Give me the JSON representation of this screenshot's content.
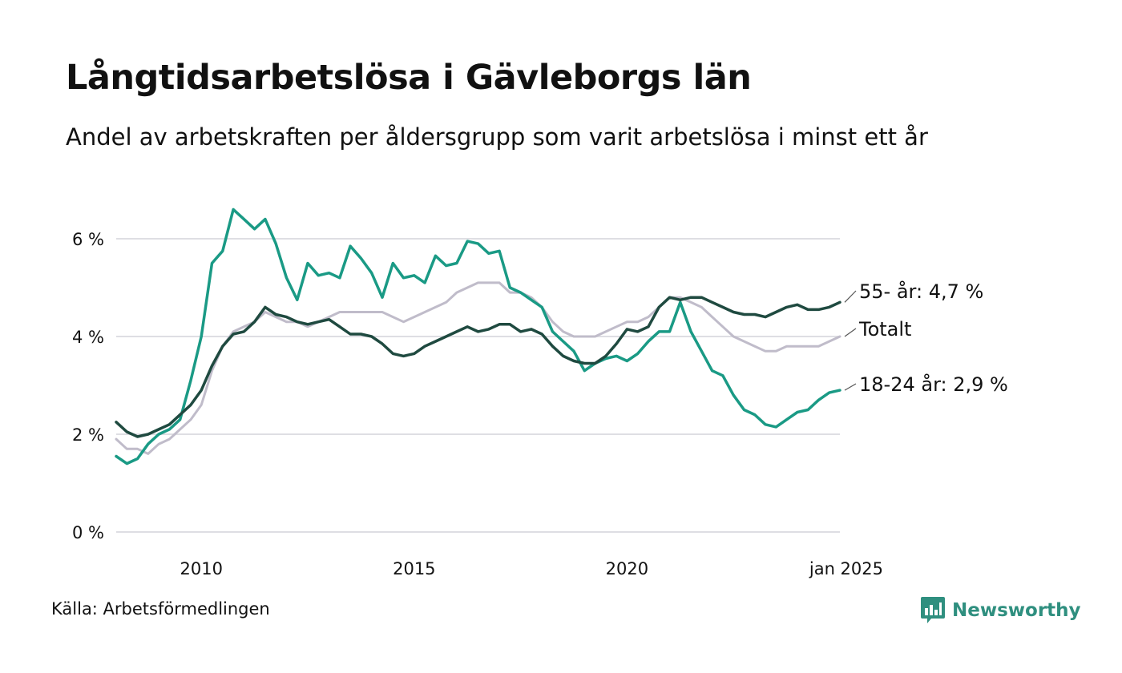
{
  "header": {
    "title": "Långtidsarbetslösa i Gävleborgs län",
    "subtitle": "Andel av arbetskraften per åldersgrupp som varit arbetslösa i minst ett år"
  },
  "footer": {
    "source": "Källa: Arbetsförmedlingen",
    "brand": "Newsworthy"
  },
  "colors": {
    "youth": "#1a9a85",
    "senior": "#1f4a40",
    "total": "#c0bcca",
    "grid": "#dedee3",
    "brand": "#2f8f7f"
  },
  "chart_data": {
    "type": "line",
    "title": "Långtidsarbetslösa i Gävleborgs län",
    "subtitle": "Andel av arbetskraften per åldersgrupp som varit arbetslösa i minst ett år",
    "xlabel": "",
    "ylabel": "",
    "xlim": [
      "2008-01",
      "2025-01"
    ],
    "ylim": [
      0,
      7
    ],
    "y_ticks": [
      0,
      2,
      4,
      6
    ],
    "y_tick_labels": [
      "0 %",
      "2 %",
      "4 %",
      "6 %"
    ],
    "x_ticks": [
      "2010-01",
      "2015-01",
      "2020-01",
      "2025-01"
    ],
    "x_tick_labels": [
      "2010",
      "2015",
      "2020",
      "jan 2025"
    ],
    "grid": true,
    "legend": "end-of-line labels",
    "series": [
      {
        "key": "total",
        "name": "Totalt",
        "end_label": "Totalt",
        "points": [
          [
            "2008-01",
            1.9
          ],
          [
            "2008-04",
            1.7
          ],
          [
            "2008-07",
            1.7
          ],
          [
            "2008-10",
            1.6
          ],
          [
            "2009-01",
            1.8
          ],
          [
            "2009-04",
            1.9
          ],
          [
            "2009-07",
            2.1
          ],
          [
            "2009-10",
            2.3
          ],
          [
            "2010-01",
            2.6
          ],
          [
            "2010-04",
            3.3
          ],
          [
            "2010-07",
            3.8
          ],
          [
            "2010-10",
            4.1
          ],
          [
            "2011-01",
            4.2
          ],
          [
            "2011-04",
            4.3
          ],
          [
            "2011-07",
            4.5
          ],
          [
            "2011-10",
            4.4
          ],
          [
            "2012-01",
            4.3
          ],
          [
            "2012-04",
            4.3
          ],
          [
            "2012-07",
            4.2
          ],
          [
            "2012-10",
            4.3
          ],
          [
            "2013-01",
            4.4
          ],
          [
            "2013-04",
            4.5
          ],
          [
            "2013-07",
            4.5
          ],
          [
            "2013-10",
            4.5
          ],
          [
            "2014-01",
            4.5
          ],
          [
            "2014-04",
            4.5
          ],
          [
            "2014-07",
            4.4
          ],
          [
            "2014-10",
            4.3
          ],
          [
            "2015-01",
            4.4
          ],
          [
            "2015-04",
            4.5
          ],
          [
            "2015-07",
            4.6
          ],
          [
            "2015-10",
            4.7
          ],
          [
            "2016-01",
            4.9
          ],
          [
            "2016-04",
            5.0
          ],
          [
            "2016-07",
            5.1
          ],
          [
            "2016-10",
            5.1
          ],
          [
            "2017-01",
            5.1
          ],
          [
            "2017-04",
            4.9
          ],
          [
            "2017-07",
            4.9
          ],
          [
            "2017-10",
            4.8
          ],
          [
            "2018-01",
            4.6
          ],
          [
            "2018-04",
            4.3
          ],
          [
            "2018-07",
            4.1
          ],
          [
            "2018-10",
            4.0
          ],
          [
            "2019-01",
            4.0
          ],
          [
            "2019-04",
            4.0
          ],
          [
            "2019-07",
            4.1
          ],
          [
            "2019-10",
            4.2
          ],
          [
            "2020-01",
            4.3
          ],
          [
            "2020-04",
            4.3
          ],
          [
            "2020-07",
            4.4
          ],
          [
            "2020-10",
            4.6
          ],
          [
            "2021-01",
            4.8
          ],
          [
            "2021-04",
            4.8
          ],
          [
            "2021-07",
            4.7
          ],
          [
            "2021-10",
            4.6
          ],
          [
            "2022-01",
            4.4
          ],
          [
            "2022-04",
            4.2
          ],
          [
            "2022-07",
            4.0
          ],
          [
            "2022-10",
            3.9
          ],
          [
            "2023-01",
            3.8
          ],
          [
            "2023-04",
            3.7
          ],
          [
            "2023-07",
            3.7
          ],
          [
            "2023-10",
            3.8
          ],
          [
            "2024-01",
            3.8
          ],
          [
            "2024-04",
            3.8
          ],
          [
            "2024-07",
            3.8
          ],
          [
            "2024-10",
            3.9
          ],
          [
            "2025-01",
            4.0
          ]
        ]
      },
      {
        "key": "youth",
        "name": "18-24 år",
        "end_label": "18-24 år: 2,9 %",
        "points": [
          [
            "2008-01",
            1.55
          ],
          [
            "2008-04",
            1.4
          ],
          [
            "2008-07",
            1.5
          ],
          [
            "2008-10",
            1.8
          ],
          [
            "2009-01",
            2.0
          ],
          [
            "2009-04",
            2.1
          ],
          [
            "2009-07",
            2.3
          ],
          [
            "2009-10",
            3.1
          ],
          [
            "2010-01",
            4.0
          ],
          [
            "2010-04",
            5.5
          ],
          [
            "2010-07",
            5.75
          ],
          [
            "2010-10",
            6.6
          ],
          [
            "2011-01",
            6.4
          ],
          [
            "2011-04",
            6.2
          ],
          [
            "2011-07",
            6.4
          ],
          [
            "2011-10",
            5.9
          ],
          [
            "2012-01",
            5.2
          ],
          [
            "2012-04",
            4.75
          ],
          [
            "2012-07",
            5.5
          ],
          [
            "2012-10",
            5.25
          ],
          [
            "2013-01",
            5.3
          ],
          [
            "2013-04",
            5.2
          ],
          [
            "2013-07",
            5.85
          ],
          [
            "2013-10",
            5.6
          ],
          [
            "2014-01",
            5.3
          ],
          [
            "2014-04",
            4.8
          ],
          [
            "2014-07",
            5.5
          ],
          [
            "2014-10",
            5.2
          ],
          [
            "2015-01",
            5.25
          ],
          [
            "2015-04",
            5.1
          ],
          [
            "2015-07",
            5.65
          ],
          [
            "2015-10",
            5.45
          ],
          [
            "2016-01",
            5.5
          ],
          [
            "2016-04",
            5.95
          ],
          [
            "2016-07",
            5.9
          ],
          [
            "2016-10",
            5.7
          ],
          [
            "2017-01",
            5.75
          ],
          [
            "2017-04",
            5.0
          ],
          [
            "2017-07",
            4.9
          ],
          [
            "2017-10",
            4.75
          ],
          [
            "2018-01",
            4.6
          ],
          [
            "2018-04",
            4.1
          ],
          [
            "2018-07",
            3.9
          ],
          [
            "2018-10",
            3.7
          ],
          [
            "2019-01",
            3.3
          ],
          [
            "2019-04",
            3.45
          ],
          [
            "2019-07",
            3.55
          ],
          [
            "2019-10",
            3.6
          ],
          [
            "2020-01",
            3.5
          ],
          [
            "2020-04",
            3.65
          ],
          [
            "2020-07",
            3.9
          ],
          [
            "2020-10",
            4.1
          ],
          [
            "2021-01",
            4.1
          ],
          [
            "2021-04",
            4.7
          ],
          [
            "2021-07",
            4.1
          ],
          [
            "2021-10",
            3.7
          ],
          [
            "2022-01",
            3.3
          ],
          [
            "2022-04",
            3.2
          ],
          [
            "2022-07",
            2.8
          ],
          [
            "2022-10",
            2.5
          ],
          [
            "2023-01",
            2.4
          ],
          [
            "2023-04",
            2.2
          ],
          [
            "2023-07",
            2.15
          ],
          [
            "2023-10",
            2.3
          ],
          [
            "2024-01",
            2.45
          ],
          [
            "2024-04",
            2.5
          ],
          [
            "2024-07",
            2.7
          ],
          [
            "2024-10",
            2.85
          ],
          [
            "2025-01",
            2.9
          ]
        ]
      },
      {
        "key": "senior",
        "name": "55- år",
        "end_label": "55- år: 4,7 %",
        "points": [
          [
            "2008-01",
            2.25
          ],
          [
            "2008-04",
            2.05
          ],
          [
            "2008-07",
            1.95
          ],
          [
            "2008-10",
            2.0
          ],
          [
            "2009-01",
            2.1
          ],
          [
            "2009-04",
            2.2
          ],
          [
            "2009-07",
            2.4
          ],
          [
            "2009-10",
            2.6
          ],
          [
            "2010-01",
            2.9
          ],
          [
            "2010-04",
            3.4
          ],
          [
            "2010-07",
            3.8
          ],
          [
            "2010-10",
            4.05
          ],
          [
            "2011-01",
            4.1
          ],
          [
            "2011-04",
            4.3
          ],
          [
            "2011-07",
            4.6
          ],
          [
            "2011-10",
            4.45
          ],
          [
            "2012-01",
            4.4
          ],
          [
            "2012-04",
            4.3
          ],
          [
            "2012-07",
            4.25
          ],
          [
            "2012-10",
            4.3
          ],
          [
            "2013-01",
            4.35
          ],
          [
            "2013-04",
            4.2
          ],
          [
            "2013-07",
            4.05
          ],
          [
            "2013-10",
            4.05
          ],
          [
            "2014-01",
            4.0
          ],
          [
            "2014-04",
            3.85
          ],
          [
            "2014-07",
            3.65
          ],
          [
            "2014-10",
            3.6
          ],
          [
            "2015-01",
            3.65
          ],
          [
            "2015-04",
            3.8
          ],
          [
            "2015-07",
            3.9
          ],
          [
            "2015-10",
            4.0
          ],
          [
            "2016-01",
            4.1
          ],
          [
            "2016-04",
            4.2
          ],
          [
            "2016-07",
            4.1
          ],
          [
            "2016-10",
            4.15
          ],
          [
            "2017-01",
            4.25
          ],
          [
            "2017-04",
            4.25
          ],
          [
            "2017-07",
            4.1
          ],
          [
            "2017-10",
            4.15
          ],
          [
            "2018-01",
            4.05
          ],
          [
            "2018-04",
            3.8
          ],
          [
            "2018-07",
            3.6
          ],
          [
            "2018-10",
            3.5
          ],
          [
            "2019-01",
            3.45
          ],
          [
            "2019-04",
            3.45
          ],
          [
            "2019-07",
            3.6
          ],
          [
            "2019-10",
            3.85
          ],
          [
            "2020-01",
            4.15
          ],
          [
            "2020-04",
            4.1
          ],
          [
            "2020-07",
            4.2
          ],
          [
            "2020-10",
            4.6
          ],
          [
            "2021-01",
            4.8
          ],
          [
            "2021-04",
            4.75
          ],
          [
            "2021-07",
            4.8
          ],
          [
            "2021-10",
            4.8
          ],
          [
            "2022-01",
            4.7
          ],
          [
            "2022-04",
            4.6
          ],
          [
            "2022-07",
            4.5
          ],
          [
            "2022-10",
            4.45
          ],
          [
            "2023-01",
            4.45
          ],
          [
            "2023-04",
            4.4
          ],
          [
            "2023-07",
            4.5
          ],
          [
            "2023-10",
            4.6
          ],
          [
            "2024-01",
            4.65
          ],
          [
            "2024-04",
            4.55
          ],
          [
            "2024-07",
            4.55
          ],
          [
            "2024-10",
            4.6
          ],
          [
            "2025-01",
            4.7
          ]
        ]
      }
    ]
  }
}
